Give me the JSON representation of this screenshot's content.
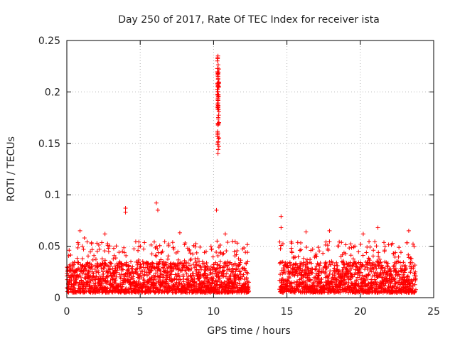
{
  "chart_data": {
    "type": "scatter",
    "title": "Day 250 of 2017, Rate Of TEC Index for receiver ista",
    "xlabel": "GPS time / hours",
    "ylabel": "ROTI / TECUs",
    "xlim": [
      0,
      25
    ],
    "ylim": [
      0,
      0.25
    ],
    "xticks": [
      0,
      5,
      10,
      15,
      20,
      25
    ],
    "xtick_labels": [
      "0",
      "5",
      "10",
      "15",
      "20",
      "25"
    ],
    "yticks": [
      0,
      0.05,
      0.1,
      0.15,
      0.2,
      0.25
    ],
    "ytick_labels": [
      "0",
      "0.05",
      "0.1",
      "0.15",
      "0.2",
      "0.25"
    ],
    "grid": true,
    "marker": "+",
    "color": "#ff0000",
    "series": [
      {
        "name": "ROTI",
        "segments": [
          {
            "x_start": 0.0,
            "x_end": 12.4,
            "typical_min": 0.005,
            "typical_max": 0.035
          },
          {
            "x_start": 14.5,
            "x_end": 23.8,
            "typical_min": 0.005,
            "typical_max": 0.035
          }
        ],
        "notable_points": [
          {
            "x": 0.9,
            "y": 0.065
          },
          {
            "x": 1.2,
            "y": 0.058
          },
          {
            "x": 2.6,
            "y": 0.062
          },
          {
            "x": 4.0,
            "y": 0.087
          },
          {
            "x": 4.0,
            "y": 0.083
          },
          {
            "x": 6.1,
            "y": 0.092
          },
          {
            "x": 6.2,
            "y": 0.085
          },
          {
            "x": 7.7,
            "y": 0.063
          },
          {
            "x": 10.2,
            "y": 0.085
          },
          {
            "x": 10.3,
            "y": 0.235
          },
          {
            "x": 10.3,
            "y": 0.215
          },
          {
            "x": 10.3,
            "y": 0.2
          },
          {
            "x": 10.3,
            "y": 0.185
          },
          {
            "x": 10.3,
            "y": 0.16
          },
          {
            "x": 10.3,
            "y": 0.14
          },
          {
            "x": 10.8,
            "y": 0.062
          },
          {
            "x": 14.6,
            "y": 0.079
          },
          {
            "x": 14.6,
            "y": 0.068
          },
          {
            "x": 16.3,
            "y": 0.064
          },
          {
            "x": 17.9,
            "y": 0.065
          },
          {
            "x": 20.2,
            "y": 0.062
          },
          {
            "x": 21.2,
            "y": 0.068
          },
          {
            "x": 23.3,
            "y": 0.065
          }
        ]
      }
    ]
  }
}
